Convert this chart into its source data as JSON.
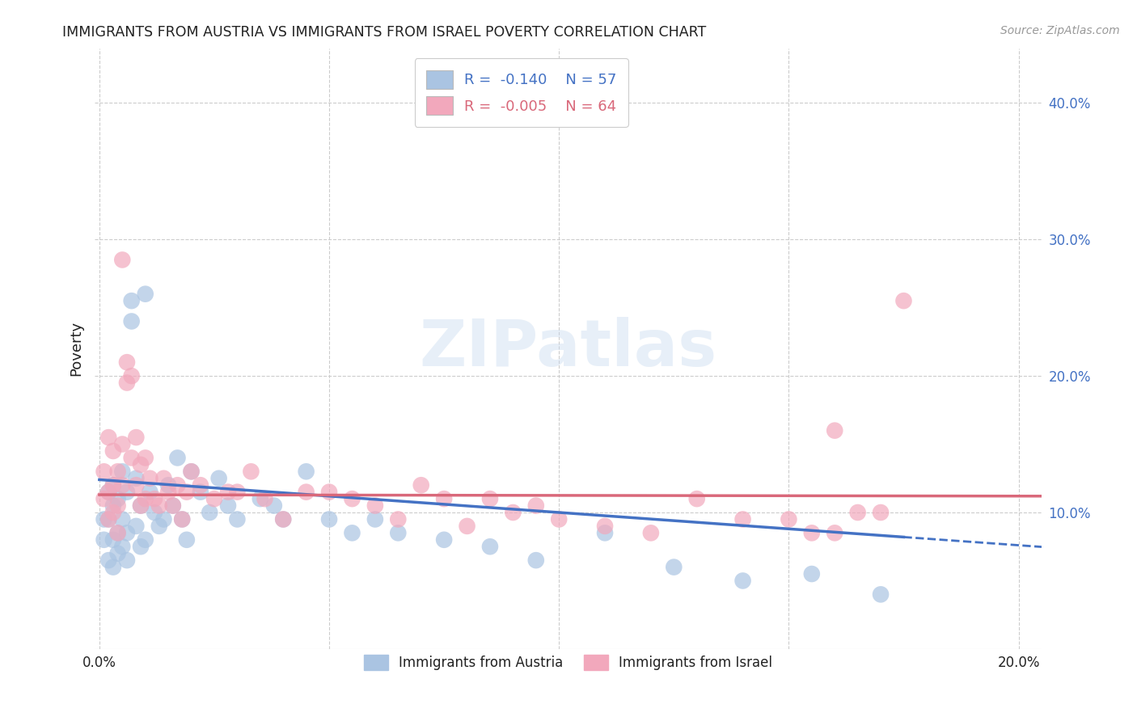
{
  "title": "IMMIGRANTS FROM AUSTRIA VS IMMIGRANTS FROM ISRAEL POVERTY CORRELATION CHART",
  "source": "Source: ZipAtlas.com",
  "ylabel_right_ticks": [
    0.1,
    0.2,
    0.3,
    0.4
  ],
  "ylabel_right_labels": [
    "10.0%",
    "20.0%",
    "30.0%",
    "40.0%"
  ],
  "ylabel_left": "Poverty",
  "xlim": [
    -0.001,
    0.205
  ],
  "ylim": [
    0.0,
    0.44
  ],
  "austria_R": "-0.140",
  "austria_N": "57",
  "israel_R": "-0.005",
  "israel_N": "64",
  "austria_color": "#aac4e2",
  "israel_color": "#f2a8bc",
  "austria_line_color": "#4472c4",
  "israel_line_color": "#d9687a",
  "watermark": "ZIPatlas",
  "austria_x": [
    0.001,
    0.001,
    0.002,
    0.002,
    0.002,
    0.003,
    0.003,
    0.003,
    0.003,
    0.004,
    0.004,
    0.004,
    0.005,
    0.005,
    0.005,
    0.006,
    0.006,
    0.006,
    0.007,
    0.007,
    0.008,
    0.008,
    0.009,
    0.009,
    0.01,
    0.01,
    0.011,
    0.012,
    0.013,
    0.014,
    0.015,
    0.016,
    0.017,
    0.018,
    0.019,
    0.02,
    0.022,
    0.024,
    0.026,
    0.028,
    0.03,
    0.035,
    0.038,
    0.04,
    0.045,
    0.05,
    0.055,
    0.06,
    0.065,
    0.075,
    0.085,
    0.095,
    0.11,
    0.125,
    0.14,
    0.155,
    0.17
  ],
  "austria_y": [
    0.095,
    0.08,
    0.115,
    0.095,
    0.065,
    0.12,
    0.105,
    0.08,
    0.06,
    0.11,
    0.085,
    0.07,
    0.13,
    0.095,
    0.075,
    0.115,
    0.085,
    0.065,
    0.255,
    0.24,
    0.125,
    0.09,
    0.105,
    0.075,
    0.26,
    0.08,
    0.115,
    0.1,
    0.09,
    0.095,
    0.12,
    0.105,
    0.14,
    0.095,
    0.08,
    0.13,
    0.115,
    0.1,
    0.125,
    0.105,
    0.095,
    0.11,
    0.105,
    0.095,
    0.13,
    0.095,
    0.085,
    0.095,
    0.085,
    0.08,
    0.075,
    0.065,
    0.085,
    0.06,
    0.05,
    0.055,
    0.04
  ],
  "israel_x": [
    0.001,
    0.001,
    0.002,
    0.002,
    0.002,
    0.003,
    0.003,
    0.003,
    0.004,
    0.004,
    0.004,
    0.005,
    0.005,
    0.005,
    0.006,
    0.006,
    0.007,
    0.007,
    0.008,
    0.008,
    0.009,
    0.009,
    0.01,
    0.01,
    0.011,
    0.012,
    0.013,
    0.014,
    0.015,
    0.016,
    0.017,
    0.018,
    0.019,
    0.02,
    0.022,
    0.025,
    0.028,
    0.03,
    0.033,
    0.036,
    0.04,
    0.045,
    0.05,
    0.055,
    0.06,
    0.065,
    0.07,
    0.075,
    0.08,
    0.085,
    0.09,
    0.095,
    0.1,
    0.11,
    0.12,
    0.13,
    0.14,
    0.15,
    0.16,
    0.17,
    0.175,
    0.16,
    0.155,
    0.165
  ],
  "israel_y": [
    0.11,
    0.13,
    0.115,
    0.095,
    0.155,
    0.145,
    0.12,
    0.1,
    0.13,
    0.105,
    0.085,
    0.285,
    0.15,
    0.12,
    0.21,
    0.195,
    0.2,
    0.14,
    0.155,
    0.12,
    0.135,
    0.105,
    0.14,
    0.11,
    0.125,
    0.11,
    0.105,
    0.125,
    0.115,
    0.105,
    0.12,
    0.095,
    0.115,
    0.13,
    0.12,
    0.11,
    0.115,
    0.115,
    0.13,
    0.11,
    0.095,
    0.115,
    0.115,
    0.11,
    0.105,
    0.095,
    0.12,
    0.11,
    0.09,
    0.11,
    0.1,
    0.105,
    0.095,
    0.09,
    0.085,
    0.11,
    0.095,
    0.095,
    0.085,
    0.1,
    0.255,
    0.16,
    0.085,
    0.1
  ],
  "grid_color": "#cccccc",
  "background_color": "#ffffff",
  "title_color": "#222222",
  "right_axis_color": "#4472c4"
}
